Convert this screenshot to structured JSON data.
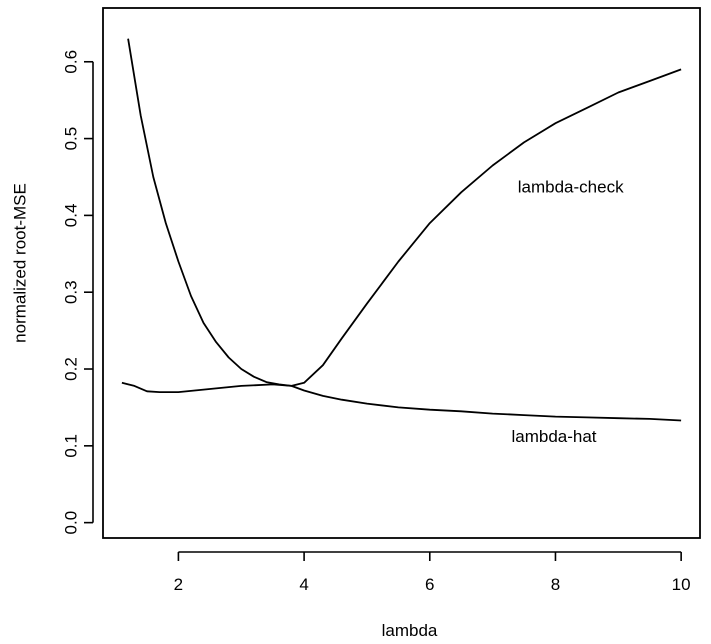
{
  "chart_data": {
    "type": "line",
    "title": "",
    "xlabel": "lambda",
    "ylabel": "normalized root-MSE",
    "xlim": [
      0.8,
      10.3
    ],
    "ylim": [
      -0.02,
      0.67
    ],
    "grid": false,
    "legend": "none",
    "x_ticks": [
      {
        "value": 2,
        "label": "2"
      },
      {
        "value": 4,
        "label": "4"
      },
      {
        "value": 6,
        "label": "6"
      },
      {
        "value": 8,
        "label": "8"
      },
      {
        "value": 10,
        "label": "10"
      }
    ],
    "y_ticks": [
      {
        "value": 0.0,
        "label": "0.0"
      },
      {
        "value": 0.1,
        "label": "0.1"
      },
      {
        "value": 0.2,
        "label": "0.2"
      },
      {
        "value": 0.3,
        "label": "0.3"
      },
      {
        "value": 0.4,
        "label": "0.4"
      },
      {
        "value": 0.5,
        "label": "0.5"
      },
      {
        "value": 0.6,
        "label": "0.6"
      }
    ],
    "series": [
      {
        "name": "lambda-check",
        "label_at": {
          "x": 7.4,
          "y": 0.43
        },
        "x": [
          1.2,
          1.4,
          1.6,
          1.8,
          2.0,
          2.2,
          2.4,
          2.6,
          2.8,
          3.0,
          3.2,
          3.4,
          3.6,
          3.8,
          4.0,
          4.3,
          4.6,
          5.0,
          5.5,
          6.0,
          6.5,
          7.0,
          7.5,
          8.0,
          8.5,
          9.0,
          9.5,
          10.0
        ],
        "y": [
          0.63,
          0.53,
          0.45,
          0.39,
          0.34,
          0.295,
          0.26,
          0.235,
          0.215,
          0.2,
          0.19,
          0.183,
          0.18,
          0.178,
          0.182,
          0.205,
          0.24,
          0.285,
          0.34,
          0.39,
          0.43,
          0.465,
          0.495,
          0.52,
          0.54,
          0.56,
          0.575,
          0.59
        ]
      },
      {
        "name": "lambda-hat",
        "label_at": {
          "x": 7.3,
          "y": 0.105
        },
        "x": [
          1.1,
          1.3,
          1.5,
          1.7,
          2.0,
          2.5,
          3.0,
          3.5,
          3.8,
          4.0,
          4.3,
          4.6,
          5.0,
          5.5,
          6.0,
          6.5,
          7.0,
          7.5,
          8.0,
          8.5,
          9.0,
          9.5,
          10.0
        ],
        "y": [
          0.182,
          0.178,
          0.171,
          0.17,
          0.17,
          0.174,
          0.178,
          0.18,
          0.178,
          0.172,
          0.165,
          0.16,
          0.155,
          0.15,
          0.147,
          0.145,
          0.142,
          0.14,
          0.138,
          0.137,
          0.136,
          0.135,
          0.133
        ]
      }
    ]
  }
}
